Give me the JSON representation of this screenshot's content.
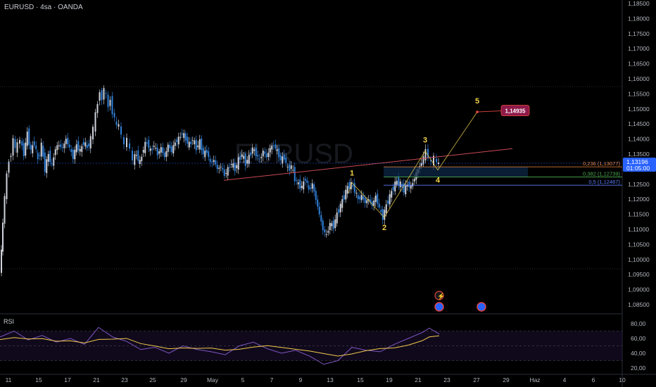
{
  "header": {
    "symbol_line": "EURUSD · 4sa · OANDA",
    "watermark": "EURUSD"
  },
  "price_axis": {
    "ticks": [
      "1,18500",
      "1,18000",
      "1,17500",
      "1,17000",
      "1,16500",
      "1,16000",
      "1,15500",
      "1,15000",
      "1,14500",
      "1,14000",
      "1,13500",
      "1,13000",
      "1,12500",
      "1,12000",
      "1,11500",
      "1,11000",
      "1,10500",
      "1,10000",
      "1,09500",
      "1,09000",
      "1,08500"
    ],
    "current_price": "1,13196",
    "countdown": "01:05:00",
    "colors": {
      "current": "#2962ff"
    }
  },
  "time_axis": {
    "ticks": [
      "11",
      "15",
      "17",
      "21",
      "23",
      "25",
      "29",
      "May",
      "5",
      "7",
      "9",
      "13",
      "15",
      "19",
      "21",
      "23",
      "27",
      "29",
      "Haz",
      "4",
      "6",
      "10"
    ]
  },
  "chart_data": {
    "type": "candlestick",
    "symbol": "EURUSD",
    "timeframe": "4sa",
    "source": "OANDA",
    "ylim": [
      1.083,
      1.1875
    ],
    "candles_close_path": [
      [
        1,
        1.096
      ],
      [
        3,
        1.103
      ],
      [
        5,
        1.112
      ],
      [
        8,
        1.121
      ],
      [
        11,
        1.128
      ],
      [
        14,
        1.133
      ],
      [
        17,
        1.135
      ],
      [
        20,
        1.14
      ],
      [
        23,
        1.137
      ],
      [
        26,
        1.138
      ],
      [
        30,
        1.14
      ],
      [
        35,
        1.135
      ],
      [
        40,
        1.142
      ],
      [
        45,
        1.136
      ],
      [
        50,
        1.139
      ],
      [
        55,
        1.133
      ],
      [
        60,
        1.138
      ],
      [
        65,
        1.13
      ],
      [
        70,
        1.135
      ],
      [
        75,
        1.131
      ],
      [
        80,
        1.137
      ],
      [
        85,
        1.138
      ],
      [
        90,
        1.137
      ],
      [
        95,
        1.14
      ],
      [
        100,
        1.137
      ],
      [
        105,
        1.134
      ],
      [
        110,
        1.138
      ],
      [
        115,
        1.136
      ],
      [
        120,
        1.139
      ],
      [
        125,
        1.137
      ],
      [
        130,
        1.14
      ],
      [
        134,
        1.144
      ],
      [
        137,
        1.148
      ],
      [
        140,
        1.152
      ],
      [
        143,
        1.156
      ],
      [
        146,
        1.153
      ],
      [
        149,
        1.157
      ],
      [
        152,
        1.154
      ],
      [
        155,
        1.151
      ],
      [
        158,
        1.153
      ],
      [
        161,
        1.149
      ],
      [
        164,
        1.147
      ],
      [
        167,
        1.144
      ],
      [
        170,
        1.145
      ],
      [
        174,
        1.141
      ],
      [
        178,
        1.138
      ],
      [
        182,
        1.14
      ],
      [
        186,
        1.136
      ],
      [
        190,
        1.133
      ],
      [
        195,
        1.135
      ],
      [
        200,
        1.132
      ],
      [
        205,
        1.137
      ],
      [
        210,
        1.139
      ],
      [
        215,
        1.136
      ],
      [
        220,
        1.138
      ],
      [
        225,
        1.135
      ],
      [
        230,
        1.137
      ],
      [
        235,
        1.134
      ],
      [
        240,
        1.138
      ],
      [
        245,
        1.136
      ],
      [
        250,
        1.139
      ],
      [
        255,
        1.14
      ],
      [
        260,
        1.142
      ],
      [
        265,
        1.14
      ],
      [
        270,
        1.138
      ],
      [
        275,
        1.14
      ],
      [
        280,
        1.137
      ],
      [
        285,
        1.139
      ],
      [
        290,
        1.135
      ],
      [
        295,
        1.136
      ],
      [
        300,
        1.132
      ],
      [
        305,
        1.133
      ],
      [
        310,
        1.13
      ],
      [
        315,
        1.131
      ],
      [
        320,
        1.128
      ],
      [
        325,
        1.13
      ],
      [
        330,
        1.132
      ],
      [
        335,
        1.13
      ],
      [
        340,
        1.133
      ],
      [
        345,
        1.135
      ],
      [
        350,
        1.132
      ],
      [
        355,
        1.134
      ],
      [
        360,
        1.137
      ],
      [
        365,
        1.135
      ],
      [
        370,
        1.133
      ],
      [
        375,
        1.136
      ],
      [
        380,
        1.134
      ],
      [
        385,
        1.137
      ],
      [
        390,
        1.138
      ],
      [
        395,
        1.136
      ],
      [
        400,
        1.133
      ],
      [
        405,
        1.134
      ],
      [
        410,
        1.13
      ],
      [
        415,
        1.131
      ],
      [
        420,
        1.127
      ],
      [
        425,
        1.125
      ],
      [
        430,
        1.124
      ],
      [
        435,
        1.127
      ],
      [
        440,
        1.123
      ],
      [
        445,
        1.125
      ],
      [
        450,
        1.12
      ],
      [
        455,
        1.115
      ],
      [
        460,
        1.11
      ],
      [
        465,
        1.108
      ],
      [
        470,
        1.112
      ],
      [
        475,
        1.111
      ],
      [
        480,
        1.115
      ],
      [
        485,
        1.118
      ],
      [
        490,
        1.121
      ],
      [
        495,
        1.124
      ],
      [
        500,
        1.125
      ],
      [
        505,
        1.123
      ],
      [
        510,
        1.12
      ],
      [
        515,
        1.121
      ],
      [
        520,
        1.119
      ],
      [
        525,
        1.12
      ],
      [
        530,
        1.118
      ],
      [
        535,
        1.121
      ],
      [
        540,
        1.117
      ],
      [
        545,
        1.114
      ],
      [
        550,
        1.118
      ],
      [
        555,
        1.121
      ],
      [
        560,
        1.124
      ],
      [
        565,
        1.126
      ],
      [
        570,
        1.125
      ],
      [
        575,
        1.123
      ],
      [
        580,
        1.125
      ],
      [
        585,
        1.124
      ],
      [
        590,
        1.127
      ],
      [
        595,
        1.13
      ],
      [
        600,
        1.132
      ],
      [
        603,
        1.134
      ],
      [
        606,
        1.136
      ],
      [
        610,
        1.134
      ],
      [
        614,
        1.132
      ],
      [
        618,
        1.134
      ],
      [
        622,
        1.132
      ],
      [
        624,
        1.132
      ]
    ],
    "elliott_waves": [
      {
        "label": "1",
        "t": 500,
        "price": 1.1255
      },
      {
        "label": "2",
        "t": 546,
        "price": 1.114
      },
      {
        "label": "3",
        "t": 604,
        "price": 1.136
      },
      {
        "label": "4",
        "t": 622,
        "price": 1.1297
      },
      {
        "label": "5",
        "t": 678,
        "price": 1.149
      }
    ],
    "target_label": "1,14935",
    "fib_levels": [
      {
        "label": "0,236 (1,13077)",
        "price": 1.13077,
        "color": "#f0883e"
      },
      {
        "label": "0,382 (1,12739)",
        "price": 1.12739,
        "color": "#4caf50"
      },
      {
        "label": "0,5 (1,12467)",
        "price": 1.12467,
        "color": "#5b7cfa"
      }
    ],
    "trendline": {
      "from": [
        318,
        1.1263
      ],
      "to": [
        728,
        1.1368
      ],
      "color": "#c94a55"
    },
    "colors": {
      "up": "#cfd3dc",
      "down": "#2f7fd8",
      "wave": "#f2d24b",
      "target": "#8e1a4a"
    }
  },
  "rsi": {
    "label": "RSI",
    "ticks": [
      "80,00",
      "60,00",
      "40,00",
      "20,00"
    ],
    "values": [
      [
        0,
        62
      ],
      [
        20,
        70
      ],
      [
        40,
        58
      ],
      [
        60,
        64
      ],
      [
        80,
        55
      ],
      [
        100,
        60
      ],
      [
        120,
        52
      ],
      [
        140,
        75
      ],
      [
        160,
        62
      ],
      [
        180,
        56
      ],
      [
        200,
        45
      ],
      [
        220,
        48
      ],
      [
        240,
        40
      ],
      [
        260,
        50
      ],
      [
        280,
        45
      ],
      [
        300,
        42
      ],
      [
        320,
        38
      ],
      [
        340,
        50
      ],
      [
        360,
        55
      ],
      [
        380,
        46
      ],
      [
        400,
        40
      ],
      [
        420,
        44
      ],
      [
        440,
        36
      ],
      [
        460,
        25
      ],
      [
        480,
        30
      ],
      [
        500,
        48
      ],
      [
        520,
        44
      ],
      [
        540,
        42
      ],
      [
        560,
        52
      ],
      [
        580,
        60
      ],
      [
        600,
        68
      ],
      [
        610,
        74
      ],
      [
        624,
        66
      ]
    ]
  }
}
